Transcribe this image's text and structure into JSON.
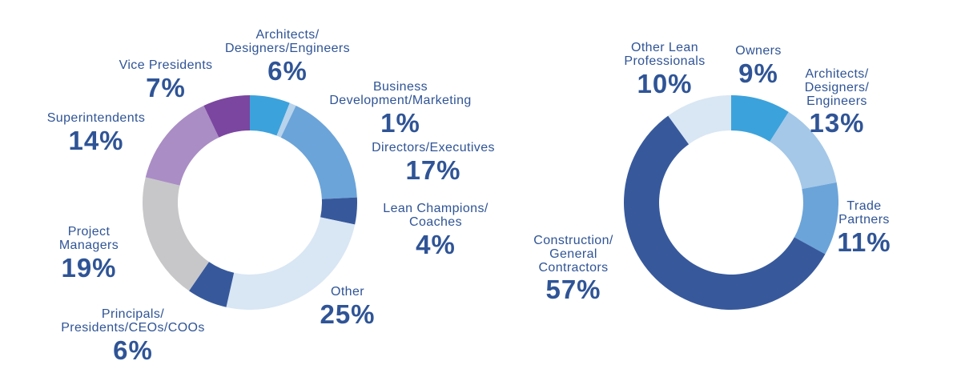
{
  "page": {
    "background_color": "#FFFFFF",
    "label_text_color": "#2F5496"
  },
  "chart_data": [
    {
      "type": "pie",
      "subtype": "donut",
      "title": "",
      "legend_position": "callout-labels",
      "total_shown": 99,
      "segments": [
        {
          "label": "Architects/\nDesigners/Engineers",
          "pct": "6%",
          "value": 6,
          "color": "#3CA2DC"
        },
        {
          "label": "Business\nDevelopment/Marketing",
          "pct": "1%",
          "value": 1,
          "color": "#B8D3EC"
        },
        {
          "label": "Directors/Executives",
          "pct": "17%",
          "value": 17,
          "color": "#6BA4D9"
        },
        {
          "label": "Lean Champions/\nCoaches",
          "pct": "4%",
          "value": 4,
          "color": "#37599C"
        },
        {
          "label": "Other",
          "pct": "25%",
          "value": 25,
          "color": "#D9E6F4"
        },
        {
          "label": "Principals/\nPresidents/CEOs/COOs",
          "pct": "6%",
          "value": 6,
          "color": "#37599C"
        },
        {
          "label": "Project\nManagers",
          "pct": "19%",
          "value": 19,
          "color": "#C7C7C9"
        },
        {
          "label": "Superintendents",
          "pct": "14%",
          "value": 14,
          "color": "#AA8DC5"
        },
        {
          "label": "Vice Presidents",
          "pct": "7%",
          "value": 7,
          "color": "#7B46A0"
        }
      ]
    },
    {
      "type": "pie",
      "subtype": "donut",
      "title": "",
      "legend_position": "callout-labels",
      "total_shown": 100,
      "segments": [
        {
          "label": "Owners",
          "pct": "9%",
          "value": 9,
          "color": "#3CA2DC"
        },
        {
          "label": "Architects/\nDesigners/\nEngineers",
          "pct": "13%",
          "value": 13,
          "color": "#A5C8E8"
        },
        {
          "label": "Trade\nPartners",
          "pct": "11%",
          "value": 11,
          "color": "#6BA4D9"
        },
        {
          "label": "Construction/\nGeneral\nContractors",
          "pct": "57%",
          "value": 57,
          "color": "#37599C"
        },
        {
          "label": "Other Lean\nProfessionals",
          "pct": "10%",
          "value": 10,
          "color": "#D9E6F4"
        }
      ]
    }
  ]
}
